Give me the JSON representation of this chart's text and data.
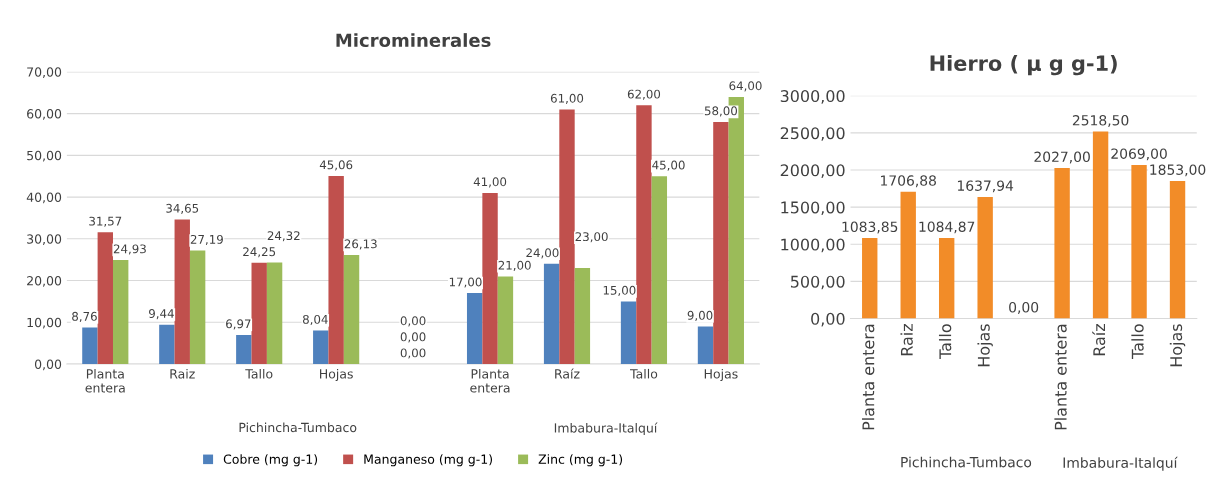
{
  "chart_data": [
    {
      "type": "bar",
      "title": "Microminerales",
      "categories": [
        "Planta\nentera",
        "Raiz",
        "Tallo",
        "Hojas",
        null,
        "Planta\nentera",
        "Raíz",
        "Tallo",
        "Hojas"
      ],
      "series": [
        {
          "name": "Cobre (mg g-1)",
          "color": "#4f81bd",
          "values": [
            8.76,
            9.44,
            6.97,
            8.04,
            0,
            17,
            24,
            15,
            9
          ],
          "value_labels": [
            "8,76",
            "9,44",
            "6,97",
            "8,04",
            "0,00",
            "17,00",
            "24,00",
            "15,00",
            "9,00"
          ]
        },
        {
          "name": "Manganeso (mg g-1)",
          "color": "#c0504d",
          "values": [
            31.57,
            34.65,
            24.25,
            45.06,
            0,
            41,
            61,
            62,
            58
          ],
          "value_labels": [
            "31,57",
            "34,65",
            "24,25",
            "45,06",
            "0,00",
            "41,00",
            "61,00",
            "62,00",
            "58,00"
          ]
        },
        {
          "name": "Zinc (mg g-1)",
          "color": "#9bbb59",
          "values": [
            24.93,
            27.19,
            24.32,
            26.13,
            0,
            21,
            23,
            45,
            64
          ],
          "value_labels": [
            "24,93",
            "27,19",
            "24,32",
            "26,13",
            "0,00",
            "21,00",
            "23,00",
            "45,00",
            "64,00"
          ]
        }
      ],
      "ylim": [
        0,
        70
      ],
      "yticks": [
        {
          "value": 0,
          "label": "0,00"
        },
        {
          "value": 10,
          "label": "10,00"
        },
        {
          "value": 20,
          "label": "20,00"
        },
        {
          "value": 30,
          "label": "30,00"
        },
        {
          "value": 40,
          "label": "40,00"
        },
        {
          "value": 50,
          "label": "50,00"
        },
        {
          "value": 60,
          "label": "60,00"
        },
        {
          "value": 70,
          "label": "70,00"
        }
      ],
      "grid": "y",
      "legend": "bottom",
      "annotations": [
        "Pichincha-Tumbaco",
        "Imbabura-Italquí"
      ]
    },
    {
      "type": "bar",
      "title": "Hierro ( µ g g-1)",
      "categories": [
        "Planta entera",
        "Raiz",
        "Tallo",
        "Hojas",
        null,
        "Planta entera",
        "Raíz",
        "Tallo",
        "Hojas"
      ],
      "series": [
        {
          "color": "#f28c28",
          "values": [
            1083.85,
            1706.88,
            1084.87,
            1637.94,
            0,
            2027,
            2518.5,
            2069,
            1853
          ],
          "value_labels": [
            "1083,85",
            "1706,88",
            "1084,87",
            "1637,94",
            "0,00",
            "2027,00",
            "2518,50",
            "2069,00",
            "1853,00"
          ]
        }
      ],
      "ylim": [
        0,
        3000
      ],
      "yticks": [
        {
          "value": 0,
          "label": "0,00"
        },
        {
          "value": 500,
          "label": "500,00"
        },
        {
          "value": 1000,
          "label": "1000,00"
        },
        {
          "value": 1500,
          "label": "1500,00"
        },
        {
          "value": 2000,
          "label": "2000,00"
        },
        {
          "value": 2500,
          "label": "2500,00"
        },
        {
          "value": 3000,
          "label": "3000,00"
        }
      ],
      "grid": "y",
      "annotations": [
        "Pichincha-Tumbaco",
        "Imbabura-Italquí"
      ]
    }
  ]
}
